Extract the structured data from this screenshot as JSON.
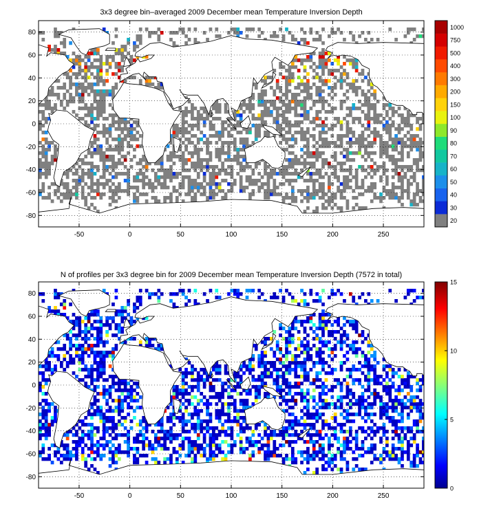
{
  "figure": {
    "top_title": "3x3 degree bin–averaged 2009 December mean Temperature Inversion Depth",
    "bottom_title": "N of profiles per 3x3 degree bin for 2009 December mean Temperature Inversion Depth  (7572 in total)"
  },
  "chart_data": [
    {
      "type": "heatmap",
      "title": "3x3 degree bin–averaged 2009 December mean Temperature Inversion Depth",
      "xlabel": "",
      "ylabel": "",
      "xlim": [
        -90,
        290
      ],
      "ylim": [
        -90,
        90
      ],
      "xticks": [
        -50,
        0,
        50,
        100,
        150,
        200,
        250
      ],
      "yticks": [
        80,
        60,
        40,
        20,
        0,
        -20,
        -40,
        -60,
        -80
      ],
      "grid": true,
      "bin_size_deg": 3,
      "colorbar": {
        "type": "categorical",
        "labels": [
          "20",
          "30",
          "40",
          "50",
          "60",
          "70",
          "80",
          "90",
          "100",
          "150",
          "200",
          "300",
          "400",
          "500",
          "750",
          "1000"
        ],
        "colors": [
          "#808080",
          "#0b2bd6",
          "#1863ee",
          "#1c8fea",
          "#17b3c8",
          "#12c8a0",
          "#1fdc7a",
          "#8ee82a",
          "#e9f20e",
          "#ffd20a",
          "#ffaa00",
          "#ff7a00",
          "#ff4a00",
          "#f01a00",
          "#d40000",
          "#a80000"
        ]
      },
      "dominant_value": "20 (grey, majority of ocean bins)"
    },
    {
      "type": "heatmap",
      "title": "N of profiles per 3x3 degree bin for 2009 December mean Temperature Inversion Depth  (7572 in total)",
      "total_profiles": 7572,
      "xlabel": "",
      "ylabel": "",
      "xlim": [
        -90,
        290
      ],
      "ylim": [
        -90,
        90
      ],
      "xticks": [
        -50,
        0,
        50,
        100,
        150,
        200,
        250
      ],
      "yticks": [
        80,
        60,
        40,
        20,
        0,
        -20,
        -40,
        -60,
        -80
      ],
      "grid": true,
      "bin_size_deg": 3,
      "colorbar": {
        "type": "continuous",
        "colormap": "jet",
        "range": [
          0,
          15
        ],
        "ticks": [
          0,
          5,
          10,
          15
        ]
      }
    }
  ]
}
